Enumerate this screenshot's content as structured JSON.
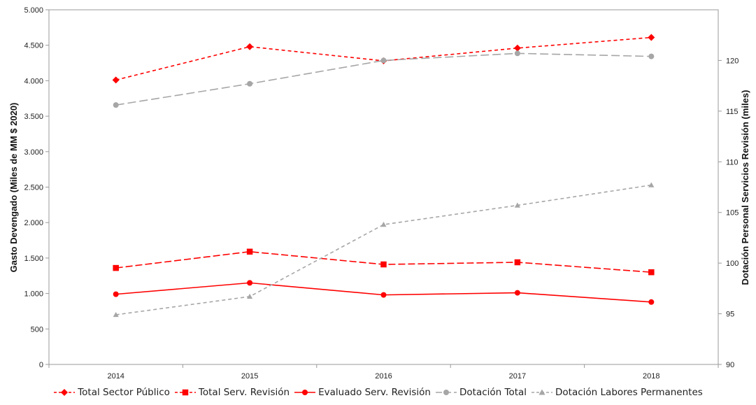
{
  "chart_data": {
    "type": "line",
    "categories": [
      "2014",
      "2015",
      "2016",
      "2017",
      "2018"
    ],
    "y_left": {
      "label": "Gasto Devengado (Miles de MM $ 2020)",
      "range": [
        0,
        5000
      ],
      "ticks": [
        "0",
        "500",
        "1.000",
        "1.500",
        "2.000",
        "2.500",
        "3.000",
        "3.500",
        "4.000",
        "4.500",
        "5.000"
      ],
      "tick_values": [
        0,
        500,
        1000,
        1500,
        2000,
        2500,
        3000,
        3500,
        4000,
        4500,
        5000
      ]
    },
    "y_right": {
      "label": "Dotación Personal Servicios Revisión (miles)",
      "range": [
        90,
        125
      ],
      "ticks": [
        "90",
        "95",
        "100",
        "105",
        "110",
        "115",
        "120"
      ],
      "tick_values": [
        90,
        95,
        100,
        105,
        110,
        115,
        120
      ]
    },
    "grid": false,
    "legend_position": "bottom",
    "series": [
      {
        "name": "Total Sector Público",
        "axis": "left",
        "values": [
          4010,
          4480,
          4280,
          4460,
          4610
        ],
        "color": "#ff0000",
        "dash": "5,4",
        "marker": "diamond"
      },
      {
        "name": "Total Serv. Revisión",
        "axis": "left",
        "values": [
          1360,
          1590,
          1410,
          1440,
          1300
        ],
        "color": "#ff0000",
        "dash": "10,4",
        "marker": "square"
      },
      {
        "name": "Evaluado Serv. Revisión",
        "axis": "left",
        "values": [
          990,
          1150,
          980,
          1010,
          880
        ],
        "color": "#ff0000",
        "dash": "",
        "marker": "circle"
      },
      {
        "name": "Dotación Total",
        "axis": "right",
        "values": [
          115.6,
          117.7,
          120.0,
          120.7,
          120.4
        ],
        "color": "#a6a6a6",
        "dash": "12,5",
        "marker": "circle"
      },
      {
        "name": "Dotación Labores Permanentes",
        "axis": "right",
        "values": [
          94.9,
          96.7,
          103.8,
          105.7,
          107.7
        ],
        "color": "#a6a6a6",
        "dash": "5,4",
        "marker": "triangle"
      }
    ]
  }
}
